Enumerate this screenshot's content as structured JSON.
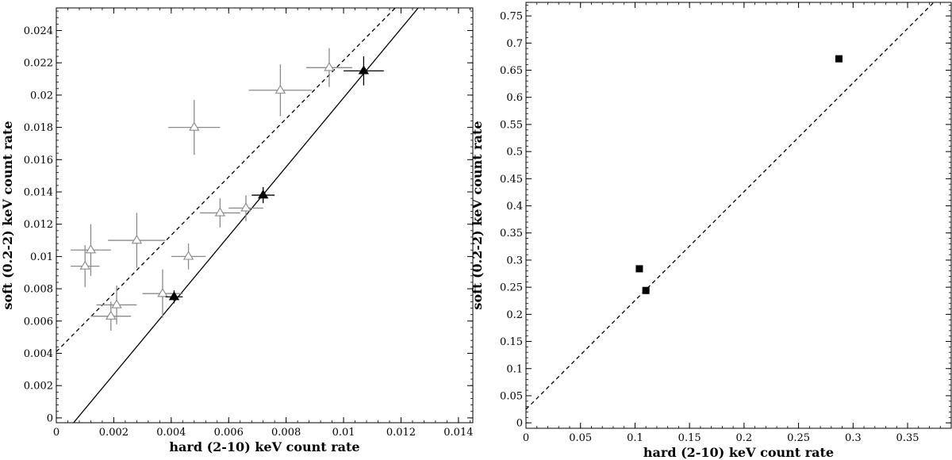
{
  "chart_data": [
    {
      "type": "scatter",
      "xlabel": "hard (2-10) keV count rate",
      "ylabel": "soft (0.2-2) keV count rate",
      "xlim": [
        0,
        0.0145
      ],
      "ylim": [
        -0.0003,
        0.0254
      ],
      "grid": false,
      "xticks": [
        0,
        0.002,
        0.004,
        0.006,
        0.008,
        0.01,
        0.012,
        0.014
      ],
      "xtick_labels": [
        "0",
        "0.002",
        "0.004",
        "0.006",
        "0.008",
        "0.01",
        "0.012",
        "0.014"
      ],
      "yticks": [
        0,
        0.002,
        0.004,
        0.006,
        0.008,
        0.01,
        0.012,
        0.014,
        0.016,
        0.018,
        0.02,
        0.022,
        0.024
      ],
      "ytick_labels": [
        "0",
        "0.002",
        "0.004",
        "0.006",
        "0.008",
        "0.01",
        "0.012",
        "0.014",
        "0.016",
        "0.018",
        "0.02",
        "0.022",
        "0.024"
      ],
      "series": [
        {
          "marker": "open-triangle",
          "color": "#8a8a8a",
          "points": [
            {
              "x": 0.001,
              "y": 0.0094,
              "xerr": 0.0005,
              "yerr": 0.0013
            },
            {
              "x": 0.0012,
              "y": 0.0104,
              "xerr": 0.0007,
              "yerr": 0.0016
            },
            {
              "x": 0.0019,
              "y": 0.0063,
              "xerr": 0.0007,
              "yerr": 0.0009
            },
            {
              "x": 0.0021,
              "y": 0.007,
              "xerr": 0.0007,
              "yerr": 0.0012
            },
            {
              "x": 0.0028,
              "y": 0.011,
              "xerr": 0.001,
              "yerr": 0.0017
            },
            {
              "x": 0.0037,
              "y": 0.0077,
              "xerr": 0.0007,
              "yerr": 0.0015
            },
            {
              "x": 0.0046,
              "y": 0.01,
              "xerr": 0.0006,
              "yerr": 0.0008
            },
            {
              "x": 0.0048,
              "y": 0.018,
              "xerr": 0.0009,
              "yerr": 0.0017
            },
            {
              "x": 0.0057,
              "y": 0.0127,
              "xerr": 0.0007,
              "yerr": 0.0009
            },
            {
              "x": 0.0066,
              "y": 0.013,
              "xerr": 0.0006,
              "yerr": 0.0008
            },
            {
              "x": 0.0078,
              "y": 0.0203,
              "xerr": 0.0011,
              "yerr": 0.0016
            },
            {
              "x": 0.0095,
              "y": 0.0217,
              "xerr": 0.0008,
              "yerr": 0.0012
            }
          ]
        },
        {
          "marker": "filled-triangle",
          "color": "#000000",
          "points": [
            {
              "x": 0.0041,
              "y": 0.0075,
              "xerr": 0.0003,
              "yerr": 0.0004
            },
            {
              "x": 0.0072,
              "y": 0.0138,
              "xerr": 0.0004,
              "yerr": 0.0005
            },
            {
              "x": 0.0107,
              "y": 0.0215,
              "xerr": 0.0007,
              "yerr": 0.0009
            }
          ]
        }
      ],
      "lines": [
        {
          "style": "solid",
          "color": "#000000",
          "x": [
            0.0006,
            0.0126
          ],
          "y": [
            -0.0003,
            0.0254
          ]
        },
        {
          "style": "dashed",
          "color": "#000000",
          "x": [
            0,
            0.0118
          ],
          "y": [
            0.0041,
            0.0254
          ]
        }
      ]
    },
    {
      "type": "scatter",
      "xlabel": "hard (2-10) keV count rate",
      "ylabel": "soft (0.2-2) keV count rate",
      "xlim": [
        0,
        0.39
      ],
      "ylim": [
        -0.01,
        0.775
      ],
      "grid": false,
      "xticks": [
        0,
        0.05,
        0.1,
        0.15,
        0.2,
        0.25,
        0.3,
        0.35
      ],
      "xtick_labels": [
        "0",
        "0.05",
        "0.1",
        "0.15",
        "0.2",
        "0.25",
        "0.3",
        "0.35"
      ],
      "yticks": [
        0,
        0.05,
        0.1,
        0.15,
        0.2,
        0.25,
        0.3,
        0.35,
        0.4,
        0.45,
        0.5,
        0.55,
        0.6,
        0.65,
        0.7,
        0.75
      ],
      "ytick_labels": [
        "0",
        "0.05",
        "0.1",
        "0.15",
        "0.2",
        "0.25",
        "0.3",
        "0.35",
        "0.4",
        "0.45",
        "0.5",
        "0.55",
        "0.6",
        "0.65",
        "0.7",
        "0.75"
      ],
      "series": [
        {
          "marker": "filled-square",
          "color": "#000000",
          "points": [
            {
              "x": 0.104,
              "y": 0.284
            },
            {
              "x": 0.11,
              "y": 0.244
            },
            {
              "x": 0.287,
              "y": 0.671
            }
          ]
        }
      ],
      "lines": [
        {
          "style": "dashed",
          "color": "#000000",
          "x": [
            0,
            0.374
          ],
          "y": [
            0.025,
            0.775
          ]
        }
      ]
    }
  ]
}
